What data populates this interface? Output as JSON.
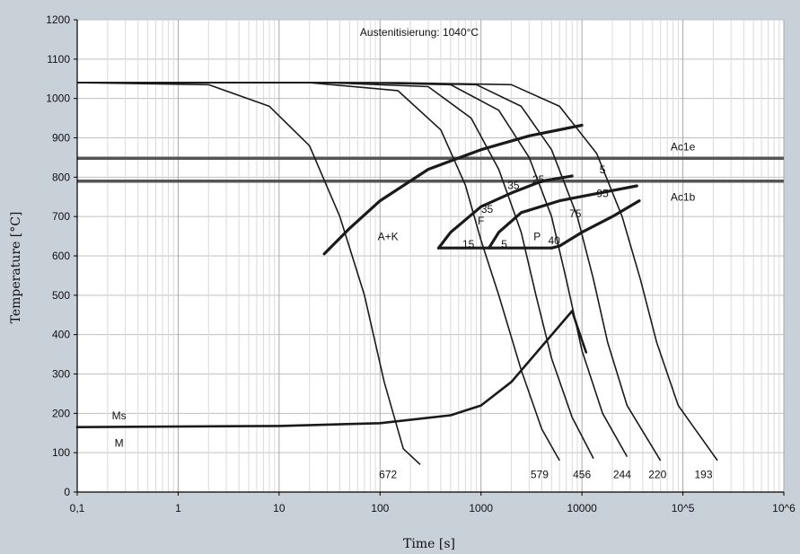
{
  "chart_data": {
    "type": "line",
    "title": "Austenitisierung: 1040°C",
    "xlabel": "Time [s]",
    "ylabel": "Temperature [°C]",
    "x_scale": "log",
    "xlim": [
      0.1,
      1000000
    ],
    "ylim": [
      0,
      1200
    ],
    "grid": true,
    "x_tick_values": [
      0.1,
      1,
      10,
      100,
      1000,
      10000,
      100000,
      1000000
    ],
    "x_tick_labels": [
      "0,1",
      "1",
      "10",
      "100",
      "1000",
      "10000",
      "10^5",
      "10^6"
    ],
    "y_tick_values": [
      0,
      100,
      200,
      300,
      400,
      500,
      600,
      700,
      800,
      900,
      1000,
      1100,
      1200
    ],
    "y_tick_labels": [
      "0",
      "100",
      "200",
      "300",
      "400",
      "500",
      "600",
      "700",
      "800",
      "900",
      "1000",
      "1100",
      "1200"
    ],
    "horizontal_lines": [
      {
        "name": "Ac1e",
        "y": 848
      },
      {
        "name": "Ac1b",
        "y": 790
      }
    ],
    "cooling_curves": [
      {
        "name": "672",
        "points": [
          [
            0.1,
            1040
          ],
          [
            2,
            1035
          ],
          [
            8,
            980
          ],
          [
            20,
            880
          ],
          [
            40,
            700
          ],
          [
            70,
            500
          ],
          [
            110,
            280
          ],
          [
            170,
            110
          ],
          [
            250,
            70
          ]
        ]
      },
      {
        "name": "579",
        "points": [
          [
            0.1,
            1040
          ],
          [
            20,
            1040
          ],
          [
            150,
            1020
          ],
          [
            400,
            920
          ],
          [
            700,
            780
          ],
          [
            1000,
            640
          ],
          [
            1500,
            500
          ],
          [
            2500,
            310
          ],
          [
            4000,
            160
          ],
          [
            6000,
            80
          ]
        ]
      },
      {
        "name": "456",
        "points": [
          [
            0.1,
            1040
          ],
          [
            30,
            1040
          ],
          [
            300,
            1030
          ],
          [
            800,
            950
          ],
          [
            1500,
            820
          ],
          [
            2500,
            660
          ],
          [
            3500,
            500
          ],
          [
            5000,
            340
          ],
          [
            8000,
            190
          ],
          [
            13000,
            85
          ]
        ]
      },
      {
        "name": "244",
        "points": [
          [
            0.1,
            1040
          ],
          [
            50,
            1040
          ],
          [
            500,
            1035
          ],
          [
            1500,
            970
          ],
          [
            3000,
            850
          ],
          [
            5000,
            700
          ],
          [
            7000,
            540
          ],
          [
            10000,
            360
          ],
          [
            16000,
            200
          ],
          [
            28000,
            90
          ]
        ]
      },
      {
        "name": "220",
        "points": [
          [
            0.1,
            1040
          ],
          [
            80,
            1040
          ],
          [
            900,
            1035
          ],
          [
            2500,
            980
          ],
          [
            5000,
            870
          ],
          [
            9000,
            700
          ],
          [
            13000,
            540
          ],
          [
            18000,
            380
          ],
          [
            28000,
            220
          ],
          [
            60000,
            80
          ]
        ]
      },
      {
        "name": "193",
        "points": [
          [
            0.1,
            1040
          ],
          [
            150,
            1040
          ],
          [
            2000,
            1035
          ],
          [
            6000,
            980
          ],
          [
            14000,
            860
          ],
          [
            25000,
            700
          ],
          [
            38000,
            540
          ],
          [
            55000,
            380
          ],
          [
            90000,
            220
          ],
          [
            220000,
            80
          ]
        ]
      }
    ],
    "transformation_lines": [
      {
        "name": "A+K boundary",
        "points": [
          [
            28,
            605
          ],
          [
            50,
            670
          ],
          [
            100,
            740
          ],
          [
            300,
            820
          ],
          [
            1000,
            870
          ],
          [
            3000,
            905
          ],
          [
            10000,
            932
          ]
        ]
      },
      {
        "name": "F start",
        "points": [
          [
            380,
            620
          ],
          [
            500,
            660
          ],
          [
            1000,
            725
          ],
          [
            2000,
            760
          ],
          [
            4000,
            790
          ],
          [
            8000,
            803
          ]
        ]
      },
      {
        "name": "P start",
        "points": [
          [
            1200,
            620
          ],
          [
            1500,
            660
          ],
          [
            2500,
            710
          ],
          [
            6000,
            740
          ],
          [
            15000,
            760
          ],
          [
            35000,
            778
          ]
        ]
      },
      {
        "name": "P finish",
        "points": [
          [
            5000,
            620
          ],
          [
            6000,
            625
          ],
          [
            10000,
            660
          ],
          [
            20000,
            700
          ],
          [
            37000,
            740
          ]
        ]
      },
      {
        "name": "Bottom",
        "points": [
          [
            380,
            620
          ],
          [
            5000,
            620
          ]
        ]
      },
      {
        "name": "Ms",
        "points": [
          [
            0.1,
            165
          ],
          [
            10,
            168
          ],
          [
            100,
            175
          ],
          [
            500,
            195
          ],
          [
            1000,
            220
          ],
          [
            2000,
            280
          ],
          [
            4000,
            370
          ],
          [
            8000,
            460
          ],
          [
            9000,
            420
          ],
          [
            11000,
            355
          ]
        ]
      }
    ],
    "annotations": [
      {
        "text": "Ac1e",
        "x": 100000,
        "y": 868
      },
      {
        "text": "Ac1b",
        "x": 100000,
        "y": 740
      },
      {
        "text": "A+K",
        "x": 120,
        "y": 640
      },
      {
        "text": "F",
        "x": 1000,
        "y": 680
      },
      {
        "text": "P",
        "x": 3600,
        "y": 640
      },
      {
        "text": "Ms",
        "x": 0.26,
        "y": 185
      },
      {
        "text": "M",
        "x": 0.26,
        "y": 115
      },
      {
        "text": "15",
        "x": 750,
        "y": 620
      },
      {
        "text": "35",
        "x": 1150,
        "y": 710
      },
      {
        "text": "5",
        "x": 1700,
        "y": 620
      },
      {
        "text": "35",
        "x": 2100,
        "y": 770
      },
      {
        "text": "25",
        "x": 3700,
        "y": 785
      },
      {
        "text": "40",
        "x": 5300,
        "y": 630
      },
      {
        "text": "75",
        "x": 8600,
        "y": 698
      },
      {
        "text": "5",
        "x": 16000,
        "y": 810
      },
      {
        "text": "95",
        "x": 16000,
        "y": 750
      },
      {
        "text": "672",
        "x": 120,
        "y": 35
      },
      {
        "text": "579",
        "x": 3800,
        "y": 35
      },
      {
        "text": "456",
        "x": 10000,
        "y": 35
      },
      {
        "text": "244",
        "x": 25000,
        "y": 35
      },
      {
        "text": "220",
        "x": 56000,
        "y": 35
      },
      {
        "text": "193",
        "x": 160000,
        "y": 35
      }
    ]
  },
  "colors": {
    "background": "#c8d0d8",
    "plot_background": "#ffffff",
    "grid": "#c0c0c0",
    "curve": "#1a1a1a"
  }
}
